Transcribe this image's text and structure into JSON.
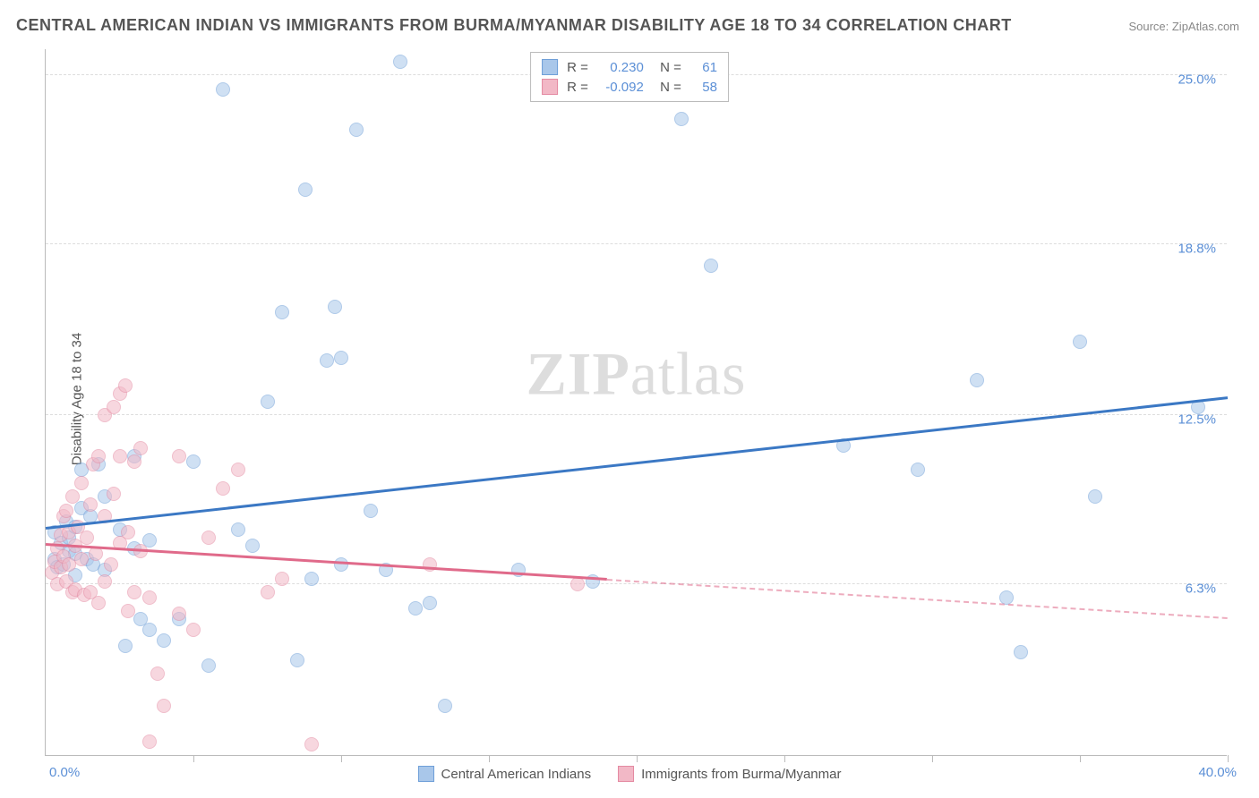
{
  "title": "CENTRAL AMERICAN INDIAN VS IMMIGRANTS FROM BURMA/MYANMAR DISABILITY AGE 18 TO 34 CORRELATION CHART",
  "source_label": "Source: ZipAtlas.com",
  "ylabel": "Disability Age 18 to 34",
  "watermark_a": "ZIP",
  "watermark_b": "atlas",
  "chart": {
    "type": "scatter",
    "xlim": [
      0,
      40
    ],
    "ylim": [
      0,
      26
    ],
    "x_origin_label": "0.0%",
    "x_max_label": "40.0%",
    "y_gridlines": [
      {
        "value": 6.3,
        "label": "6.3%"
      },
      {
        "value": 12.5,
        "label": "12.5%"
      },
      {
        "value": 18.8,
        "label": "18.8%"
      },
      {
        "value": 25.0,
        "label": "25.0%"
      }
    ],
    "x_tick_positions_pct": [
      12.5,
      25,
      37.5,
      50,
      62.5,
      75,
      87.5,
      100
    ],
    "background_color": "#ffffff",
    "grid_color": "#dddddd",
    "axis_color": "#bbbbbb",
    "marker_radius": 8,
    "marker_opacity": 0.55,
    "series": [
      {
        "name": "Central American Indians",
        "fill": "#a9c7ea",
        "stroke": "#6f9fd8",
        "trend_color": "#3b78c4",
        "R": "0.230",
        "N": "61",
        "trend": {
          "x1": 0,
          "y1": 8.3,
          "x2": 40,
          "y2": 13.1,
          "solid_until_x": 40
        },
        "points": [
          [
            0.3,
            7.2
          ],
          [
            0.3,
            8.2
          ],
          [
            0.4,
            6.9
          ],
          [
            0.5,
            7.8
          ],
          [
            0.6,
            7.0
          ],
          [
            0.7,
            8.6
          ],
          [
            0.8,
            7.5
          ],
          [
            0.8,
            8.0
          ],
          [
            1.0,
            6.6
          ],
          [
            1.0,
            7.4
          ],
          [
            1.0,
            8.4
          ],
          [
            1.2,
            9.1
          ],
          [
            1.2,
            10.5
          ],
          [
            1.4,
            7.2
          ],
          [
            1.5,
            8.8
          ],
          [
            1.6,
            7.0
          ],
          [
            1.8,
            10.7
          ],
          [
            2.0,
            6.8
          ],
          [
            2.0,
            9.5
          ],
          [
            2.5,
            8.3
          ],
          [
            2.7,
            4.0
          ],
          [
            3.0,
            7.6
          ],
          [
            3.0,
            11.0
          ],
          [
            3.2,
            5.0
          ],
          [
            3.5,
            4.6
          ],
          [
            3.5,
            7.9
          ],
          [
            4.0,
            4.2
          ],
          [
            4.5,
            5.0
          ],
          [
            5.0,
            10.8
          ],
          [
            5.5,
            3.3
          ],
          [
            6.0,
            24.5
          ],
          [
            6.5,
            8.3
          ],
          [
            7.0,
            7.7
          ],
          [
            7.5,
            13.0
          ],
          [
            8.0,
            16.3
          ],
          [
            8.5,
            3.5
          ],
          [
            8.8,
            20.8
          ],
          [
            9.0,
            6.5
          ],
          [
            9.5,
            14.5
          ],
          [
            9.8,
            16.5
          ],
          [
            10.0,
            7.0
          ],
          [
            10.0,
            14.6
          ],
          [
            10.5,
            23.0
          ],
          [
            11.0,
            9.0
          ],
          [
            11.5,
            6.8
          ],
          [
            12.0,
            25.5
          ],
          [
            12.5,
            5.4
          ],
          [
            13.0,
            5.6
          ],
          [
            13.5,
            1.8
          ],
          [
            16.0,
            6.8
          ],
          [
            18.5,
            6.4
          ],
          [
            21.5,
            23.4
          ],
          [
            22.5,
            18.0
          ],
          [
            27.0,
            11.4
          ],
          [
            29.5,
            10.5
          ],
          [
            31.5,
            13.8
          ],
          [
            32.5,
            5.8
          ],
          [
            33.0,
            3.8
          ],
          [
            35.0,
            15.2
          ],
          [
            35.5,
            9.5
          ],
          [
            39.0,
            12.8
          ]
        ]
      },
      {
        "name": "Immigrants from Burma/Myanmar",
        "fill": "#f2b8c6",
        "stroke": "#e48aa2",
        "trend_color": "#e06a8a",
        "R": "-0.092",
        "N": "58",
        "trend": {
          "x1": 0,
          "y1": 7.7,
          "x2": 40,
          "y2": 5.0,
          "solid_until_x": 19
        },
        "points": [
          [
            0.2,
            6.7
          ],
          [
            0.3,
            7.1
          ],
          [
            0.4,
            6.3
          ],
          [
            0.4,
            7.6
          ],
          [
            0.5,
            6.9
          ],
          [
            0.5,
            8.1
          ],
          [
            0.6,
            7.3
          ],
          [
            0.6,
            8.8
          ],
          [
            0.7,
            6.4
          ],
          [
            0.7,
            9.0
          ],
          [
            0.8,
            7.0
          ],
          [
            0.8,
            8.2
          ],
          [
            0.9,
            6.0
          ],
          [
            0.9,
            9.5
          ],
          [
            1.0,
            7.7
          ],
          [
            1.0,
            6.1
          ],
          [
            1.1,
            8.4
          ],
          [
            1.2,
            10.0
          ],
          [
            1.2,
            7.2
          ],
          [
            1.3,
            5.9
          ],
          [
            1.4,
            8.0
          ],
          [
            1.5,
            6.0
          ],
          [
            1.5,
            9.2
          ],
          [
            1.6,
            10.7
          ],
          [
            1.7,
            7.4
          ],
          [
            1.8,
            11.0
          ],
          [
            1.8,
            5.6
          ],
          [
            2.0,
            6.4
          ],
          [
            2.0,
            8.8
          ],
          [
            2.0,
            12.5
          ],
          [
            2.2,
            7.0
          ],
          [
            2.3,
            9.6
          ],
          [
            2.3,
            12.8
          ],
          [
            2.5,
            7.8
          ],
          [
            2.5,
            11.0
          ],
          [
            2.5,
            13.3
          ],
          [
            2.7,
            13.6
          ],
          [
            2.8,
            5.3
          ],
          [
            2.8,
            8.2
          ],
          [
            3.0,
            6.0
          ],
          [
            3.0,
            10.8
          ],
          [
            3.2,
            7.5
          ],
          [
            3.2,
            11.3
          ],
          [
            3.5,
            0.5
          ],
          [
            3.5,
            5.8
          ],
          [
            3.8,
            3.0
          ],
          [
            4.0,
            1.8
          ],
          [
            4.5,
            5.2
          ],
          [
            4.5,
            11.0
          ],
          [
            5.0,
            4.6
          ],
          [
            5.5,
            8.0
          ],
          [
            6.0,
            9.8
          ],
          [
            6.5,
            10.5
          ],
          [
            7.5,
            6.0
          ],
          [
            8.0,
            6.5
          ],
          [
            9.0,
            0.4
          ],
          [
            13.0,
            7.0
          ],
          [
            18.0,
            6.3
          ]
        ]
      }
    ]
  },
  "bottom_legend": [
    {
      "swatch_fill": "#a9c7ea",
      "swatch_stroke": "#6f9fd8",
      "label": "Central American Indians"
    },
    {
      "swatch_fill": "#f2b8c6",
      "swatch_stroke": "#e48aa2",
      "label": "Immigrants from Burma/Myanmar"
    }
  ]
}
